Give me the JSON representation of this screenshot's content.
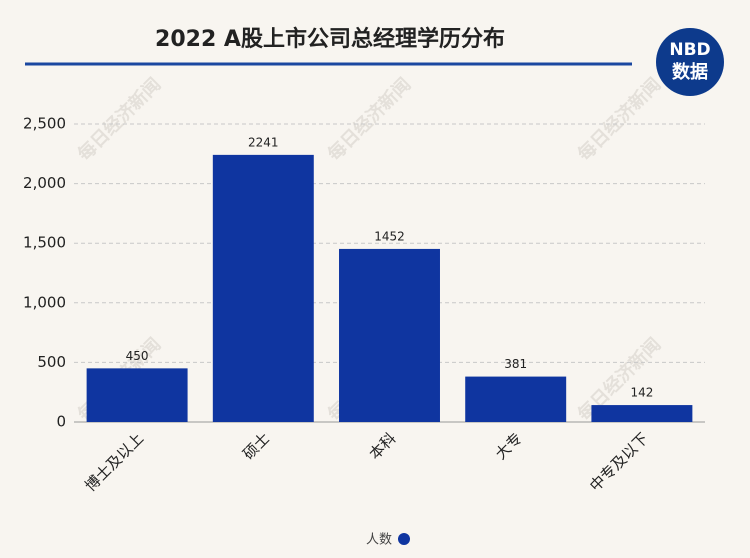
{
  "chart_data": {
    "type": "bar",
    "title": "2022 A股上市公司总经理学历分布",
    "logo": {
      "top": "NBD",
      "bottom": "数据"
    },
    "watermark": "每日经济新闻",
    "categories": [
      "博士及以上",
      "硕士",
      "本科",
      "大专",
      "中专及以下"
    ],
    "series": [
      {
        "name": "人数",
        "color": "#0f35a0",
        "values": [
          450,
          2241,
          1452,
          381,
          142
        ]
      }
    ],
    "ylim": [
      0,
      2500
    ],
    "yticks": [
      0,
      500,
      {
        "value": 1000,
        "label": "1,000"
      },
      {
        "value": 1500,
        "label": "1,500"
      },
      {
        "value": 2000,
        "label": "2,000"
      },
      {
        "value": 2500,
        "label": "2,500"
      }
    ],
    "grid": true
  }
}
